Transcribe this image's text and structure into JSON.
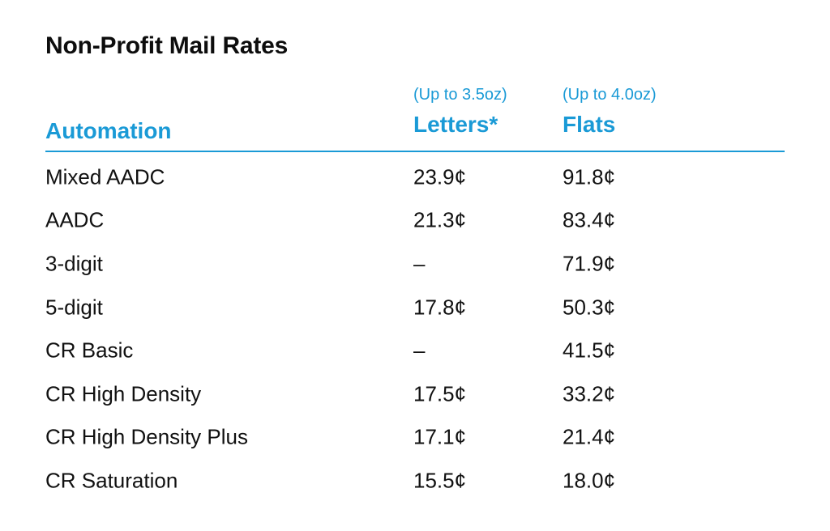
{
  "title": "Non-Profit Mail Rates",
  "header": {
    "category": "Automation",
    "letters_sub": "(Up to 3.5oz)",
    "letters": "Letters*",
    "flats_sub": "(Up to 4.0oz)",
    "flats": "Flats"
  },
  "colors": {
    "accent": "#1a9ad6",
    "text": "#111111"
  },
  "rows": [
    {
      "name": "Mixed AADC",
      "letters": "23.9¢",
      "flats": "91.8¢"
    },
    {
      "name": "AADC",
      "letters": "21.3¢",
      "flats": "83.4¢"
    },
    {
      "name": "3-digit",
      "letters": "–",
      "flats": "71.9¢"
    },
    {
      "name": "5-digit",
      "letters": "17.8¢",
      "flats": "50.3¢"
    },
    {
      "name": "CR Basic",
      "letters": "–",
      "flats": "41.5¢"
    },
    {
      "name": "CR High Density",
      "letters": "17.5¢",
      "flats": "33.2¢"
    },
    {
      "name": "CR High Density Plus",
      "letters": "17.1¢",
      "flats": "21.4¢"
    },
    {
      "name": "CR Saturation",
      "letters": "15.5¢",
      "flats": "18.0¢"
    }
  ]
}
